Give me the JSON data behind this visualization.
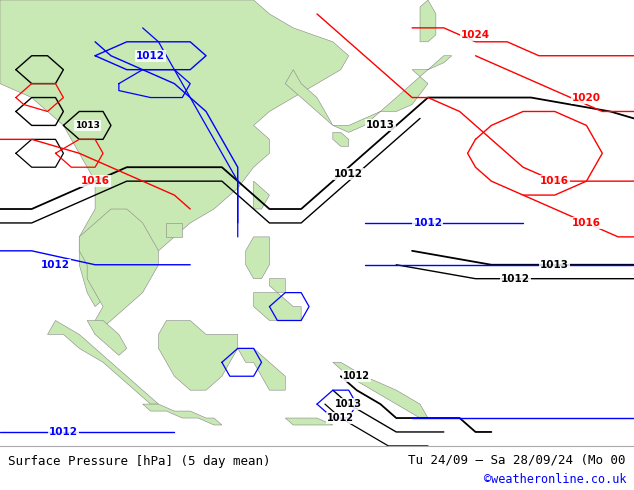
{
  "title_left": "Surface Pressure [hPa] (5 day mean)",
  "title_right_line1": "Tu 24/09 – Sa 28/09/24 (Mo 00",
  "title_right_line2": "©weatheronline.co.uk",
  "bg_color": "#ffffff",
  "land_color": "#c8e8b4",
  "sea_color": "#f0f0f0",
  "border_color": "#888888",
  "footer_bg": "#d8d8d8",
  "figsize": [
    6.34,
    4.9
  ],
  "dpi": 100,
  "lon_min": 88,
  "lon_max": 168,
  "lat_min": -12,
  "lat_max": 52
}
